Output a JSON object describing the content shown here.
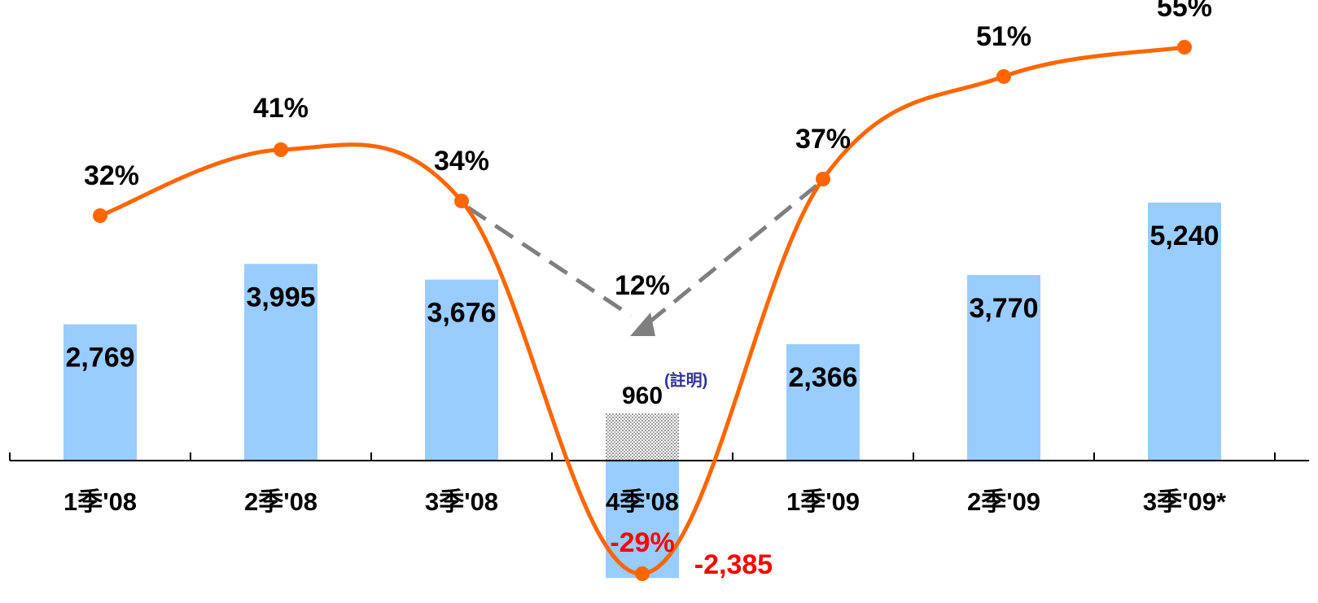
{
  "chart_data": {
    "type": "bar",
    "categories": [
      "1季'08",
      "2季'08",
      "3季'08",
      "4季'08",
      "1季'09",
      "2季'09",
      "3季'09*"
    ],
    "bar_values": [
      2769,
      3995,
      3676,
      -2385,
      2366,
      3770,
      5240
    ],
    "bar_labels": [
      "2,769",
      "3,995",
      "3,676",
      "-2,385",
      "2,366",
      "3,770",
      "5,240"
    ],
    "line_values": [
      32,
      41,
      34,
      -29,
      37,
      51,
      55
    ],
    "line_labels": [
      "32%",
      "41%",
      "34%",
      "-29%",
      "37%",
      "51%",
      "55%"
    ],
    "special": {
      "value": 960,
      "label": "960",
      "note": "(註明)",
      "adjusted_percent": "12%"
    },
    "colors": {
      "bar": "#99ccff",
      "line": "#ff6600",
      "negative_text": "#ff0000",
      "note_text": "#333399",
      "dashed_arrow": "#7f7f7f",
      "hatch": "#bbbbbb"
    },
    "grid": false,
    "legend": "none"
  }
}
